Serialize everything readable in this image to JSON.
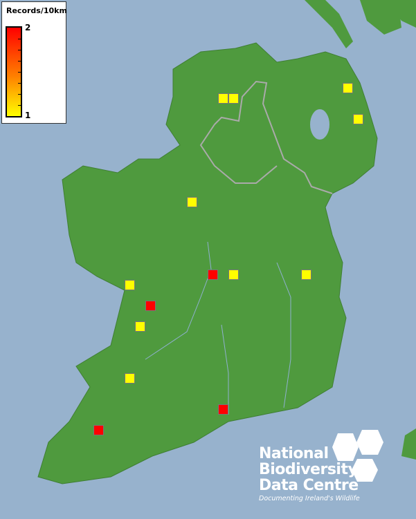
{
  "legend": {
    "title": "Records/10km",
    "max_label": "2",
    "min_label": "1",
    "color_max": "#ff0000",
    "color_min": "#ffff00"
  },
  "logo": {
    "line1": "National",
    "line2": "Biodiversity",
    "line3": "Data Centre",
    "tagline": "Documenting Ireland's Wildlife"
  },
  "records": [
    1,
    1,
    1,
    1,
    1,
    2,
    1,
    1,
    1,
    2,
    1,
    1,
    2,
    2
  ],
  "colors": {
    "sea": "#97b2cd",
    "land": "#4f9a3e"
  }
}
